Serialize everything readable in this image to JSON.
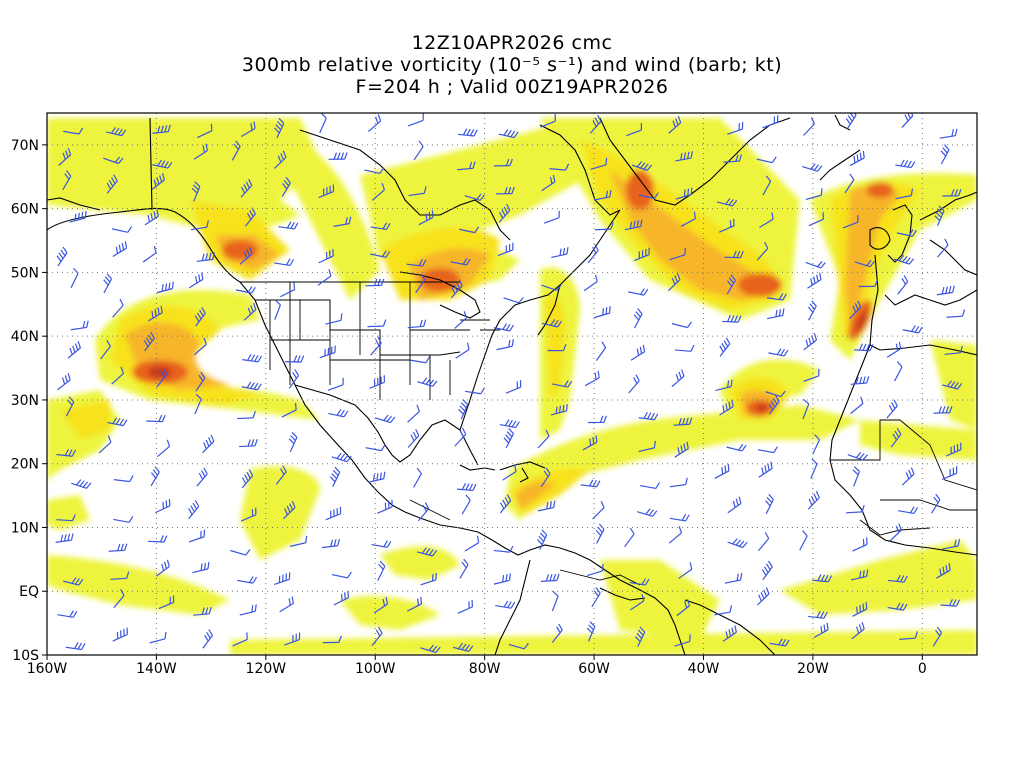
{
  "title": {
    "line1": "12Z10APR2026 cmc",
    "line2": "300mb relative vorticity (10⁻⁵ s⁻¹) and wind (barb; kt)",
    "line3": "F=204 h ; Valid 00Z19APR2026"
  },
  "axes": {
    "lon_range": [
      -160,
      10
    ],
    "lat_range": [
      -10,
      75
    ],
    "lat_ticks": [
      {
        "value": 70,
        "label": "70N"
      },
      {
        "value": 60,
        "label": "60N"
      },
      {
        "value": 50,
        "label": "50N"
      },
      {
        "value": 40,
        "label": "40N"
      },
      {
        "value": 30,
        "label": "30N"
      },
      {
        "value": 20,
        "label": "20N"
      },
      {
        "value": 10,
        "label": "10N"
      },
      {
        "value": 0,
        "label": "EQ"
      },
      {
        "value": -10,
        "label": "10S"
      }
    ],
    "lon_ticks": [
      {
        "value": -160,
        "label": "160W"
      },
      {
        "value": -140,
        "label": "140W"
      },
      {
        "value": -120,
        "label": "120W"
      },
      {
        "value": -100,
        "label": "100W"
      },
      {
        "value": -80,
        "label": "80W"
      },
      {
        "value": -60,
        "label": "60W"
      },
      {
        "value": -40,
        "label": "40W"
      },
      {
        "value": -20,
        "label": "20W"
      },
      {
        "value": 0,
        "label": "0"
      }
    ],
    "gridlines": "dotted"
  },
  "colors": {
    "light_yellow": "#e8f23a",
    "yellow": "#f7e21a",
    "light_orange": "#f7b52a",
    "orange": "#ef8a22",
    "dark_orange": "#e05d18",
    "red": "#c8361a",
    "barb": "#3a55e0",
    "coast": "#000000"
  },
  "chart_data": {
    "type": "map",
    "variable": "300mb relative vorticity (10⁻⁵ s⁻¹)",
    "overlay": "wind (barb; kt)",
    "vorticity_maxima": [
      {
        "lon": -133,
        "lat": 34,
        "level": "high"
      },
      {
        "lon": -122,
        "lat": 53,
        "level": "high"
      },
      {
        "lon": -87,
        "lat": 45,
        "level": "high"
      },
      {
        "lon": -38,
        "lat": 48,
        "level": "high"
      },
      {
        "lon": -30,
        "lat": 28,
        "level": "high"
      },
      {
        "lon": -10,
        "lat": 43,
        "level": "high"
      },
      {
        "lon": -8,
        "lat": 62,
        "level": "high"
      },
      {
        "lon": -150,
        "lat": 27,
        "level": "medium"
      },
      {
        "lon": -72,
        "lat": 16,
        "level": "medium"
      }
    ]
  }
}
